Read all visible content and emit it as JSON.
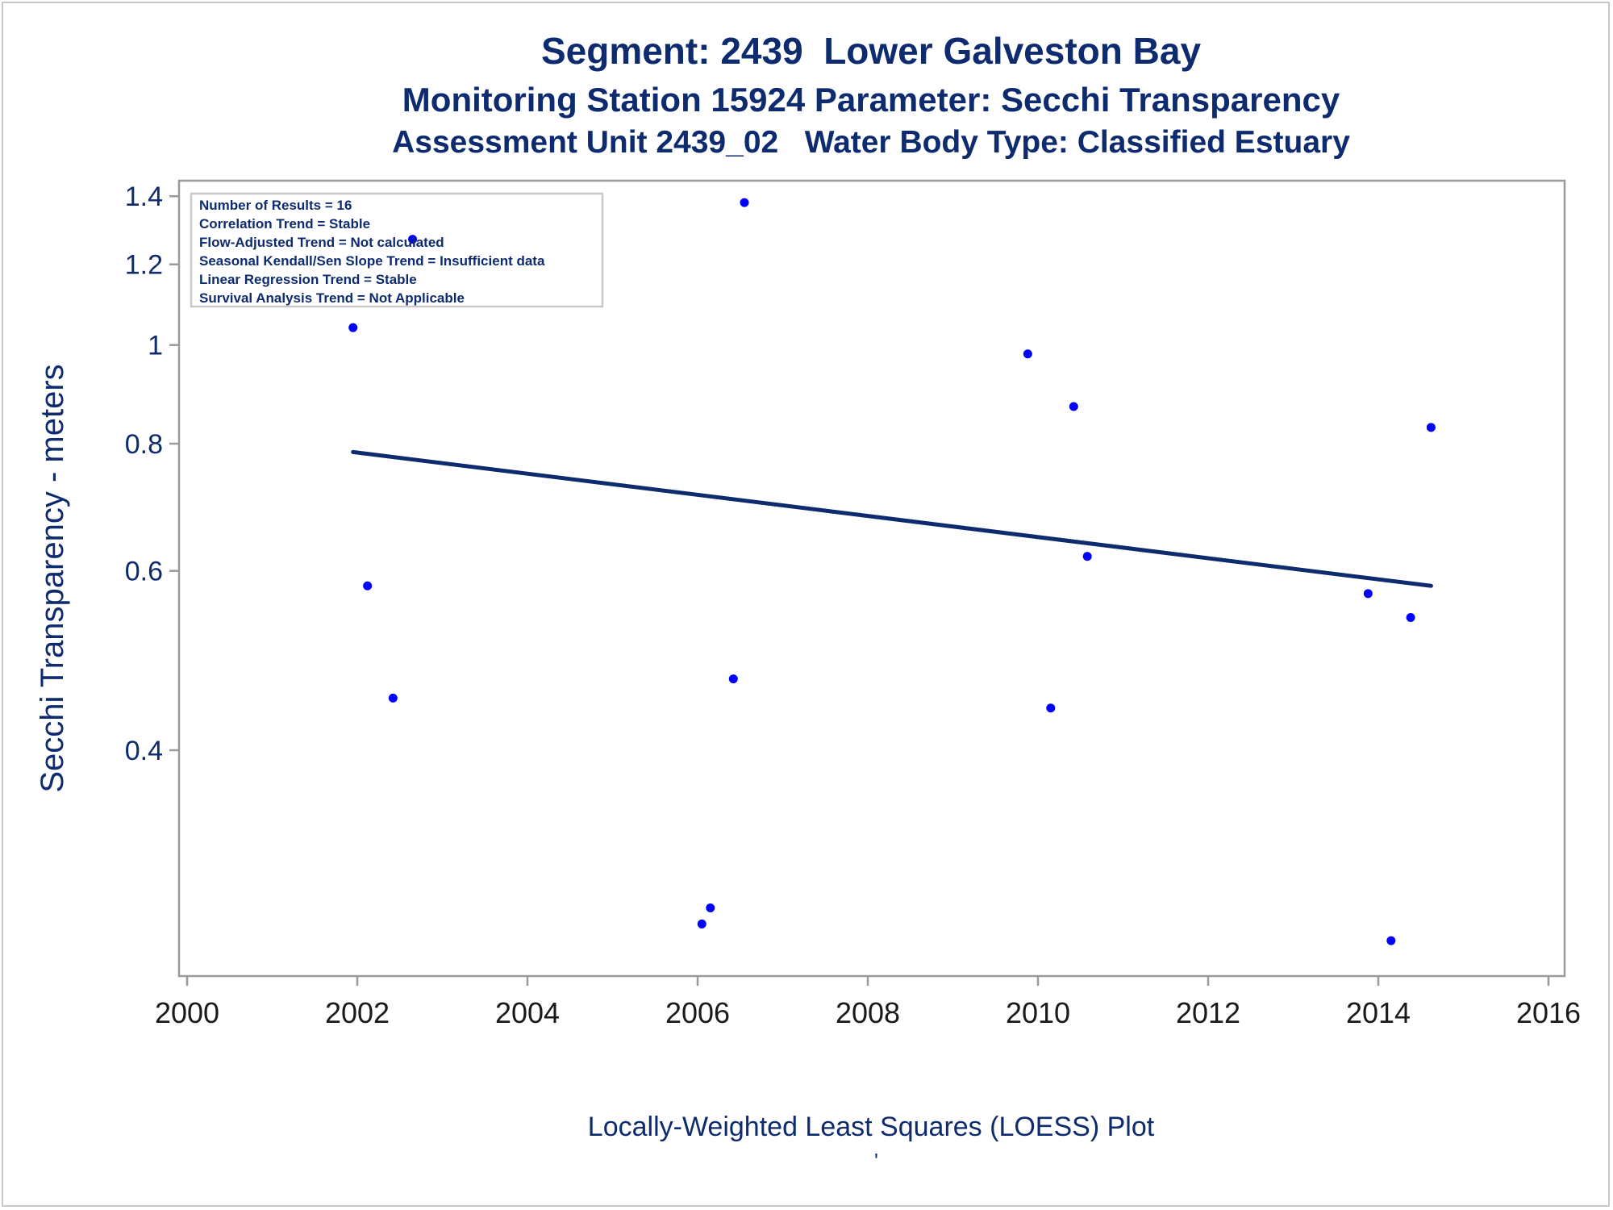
{
  "titles": {
    "line1": "Segment: 2439  Lower Galveston Bay",
    "line2": "Monitoring Station 15924 Parameter: Secchi Transparency",
    "line3": "Assessment Unit 2439_02   Water Body Type: Classified Estuary"
  },
  "footnote": "Locally-Weighted Least Squares (LOESS) Plot",
  "footnote_mark": "'",
  "legend_box": [
    "Number of Results = 16",
    "Correlation Trend = Stable",
    "Flow-Adjusted Trend = Not calculated",
    "Seasonal Kendall/Sen Slope Trend = Insufficient data",
    "Linear Regression Trend = Stable",
    "Survival Analysis Trend = Not Applicable"
  ],
  "colors": {
    "text": "#0d2b6e",
    "points": "#0000ff",
    "line": "#0d2b6e",
    "axis": "#9a9a9a"
  },
  "chart_data": {
    "type": "scatter",
    "ylabel": "Secchi Transparency - meters",
    "xlabel": "",
    "y_scale": "log",
    "xlim": [
      2000,
      2016
    ],
    "ylim": [
      0.24,
      1.45
    ],
    "x_ticks": [
      2000,
      2002,
      2004,
      2006,
      2008,
      2010,
      2012,
      2014,
      2016
    ],
    "y_ticks": [
      0.4,
      0.6,
      0.8,
      1,
      1.2,
      1.4
    ],
    "y_tick_labels": [
      "0.4",
      "0.6",
      "0.8",
      "1",
      "1.2",
      "1.4"
    ],
    "points": [
      {
        "x": 2001.95,
        "y": 1.04
      },
      {
        "x": 2002.12,
        "y": 0.58
      },
      {
        "x": 2002.42,
        "y": 0.45
      },
      {
        "x": 2002.65,
        "y": 1.27
      },
      {
        "x": 2006.05,
        "y": 0.27
      },
      {
        "x": 2006.15,
        "y": 0.28
      },
      {
        "x": 2006.42,
        "y": 0.47
      },
      {
        "x": 2006.55,
        "y": 1.38
      },
      {
        "x": 2009.88,
        "y": 0.98
      },
      {
        "x": 2010.15,
        "y": 0.44
      },
      {
        "x": 2010.42,
        "y": 0.87
      },
      {
        "x": 2010.58,
        "y": 0.62
      },
      {
        "x": 2013.88,
        "y": 0.57
      },
      {
        "x": 2014.15,
        "y": 0.26
      },
      {
        "x": 2014.38,
        "y": 0.54
      },
      {
        "x": 2014.62,
        "y": 0.83
      }
    ],
    "trend_line": [
      {
        "x": 2001.95,
        "y": 0.785
      },
      {
        "x": 2014.62,
        "y": 0.58
      }
    ]
  }
}
